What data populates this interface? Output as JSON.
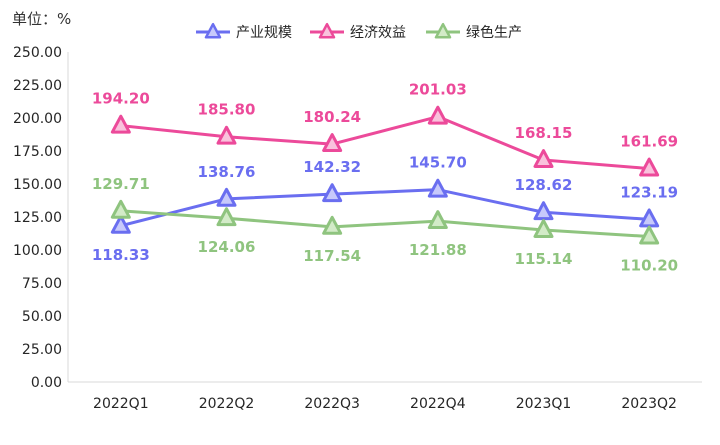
{
  "chart_data": {
    "type": "line",
    "unit_label": "单位：%",
    "categories": [
      "2022Q1",
      "2022Q2",
      "2022Q3",
      "2022Q4",
      "2023Q1",
      "2023Q2"
    ],
    "ylim": [
      0,
      250
    ],
    "yticks": [
      "0.00",
      "25.00",
      "50.00",
      "75.00",
      "100.00",
      "125.00",
      "150.00",
      "175.00",
      "200.00",
      "225.00",
      "250.00"
    ],
    "grid": false,
    "legend_position": "top",
    "series": [
      {
        "name": "产业规模",
        "color": "#6a6ef0",
        "fill": "#c7c9fb",
        "values": [
          118.33,
          138.76,
          142.32,
          145.7,
          128.62,
          123.19
        ],
        "labels": [
          "118.33",
          "138.76",
          "142.32",
          "145.70",
          "128.62",
          "123.19"
        ],
        "label_positions": [
          "below",
          "above",
          "above",
          "above",
          "above",
          "above"
        ]
      },
      {
        "name": "经济效益",
        "color": "#ec4a9a",
        "fill": "#f9c2dc",
        "values": [
          194.2,
          185.8,
          180.24,
          201.03,
          168.15,
          161.69
        ],
        "labels": [
          "194.20",
          "185.80",
          "180.24",
          "201.03",
          "168.15",
          "161.69"
        ],
        "label_positions": [
          "above",
          "above",
          "above",
          "above",
          "above",
          "above"
        ]
      },
      {
        "name": "绿色生产",
        "color": "#8fc47f",
        "fill": "#d3ebc8",
        "values": [
          129.71,
          124.06,
          117.54,
          121.88,
          115.14,
          110.2
        ],
        "labels": [
          "129.71",
          "124.06",
          "117.54",
          "121.88",
          "115.14",
          "110.20"
        ],
        "label_positions": [
          "above",
          "below",
          "below",
          "below",
          "below",
          "below"
        ]
      }
    ]
  }
}
